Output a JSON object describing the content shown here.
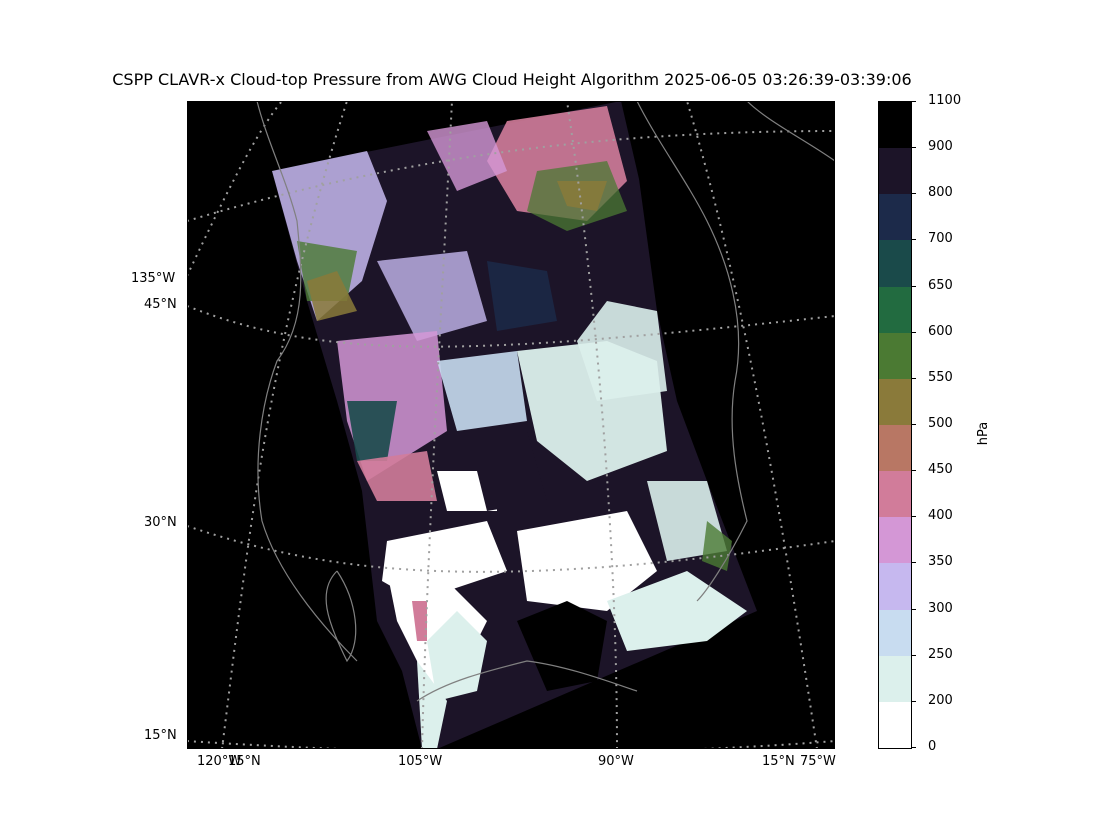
{
  "title": "CSPP CLAVR-x Cloud-top Pressure from AWG Cloud Height Algorithm 2025-06-05 03:26:39-03:39:06",
  "map": {
    "background": "#000000",
    "coastline_color": "#808080",
    "graticule_color": "#a0a0a0",
    "left_labels": [
      "135°W",
      "45°N",
      "30°N",
      "15°N"
    ],
    "bottom_labels": [
      "120°W",
      "15°N",
      "105°W",
      "90°W",
      "15°N",
      "75°W"
    ]
  },
  "colorbar": {
    "unit": "hPa",
    "ticks": [
      "1100",
      "900",
      "800",
      "700",
      "650",
      "600",
      "550",
      "500",
      "450",
      "400",
      "350",
      "300",
      "250",
      "200",
      "0"
    ],
    "colors": [
      "#000000",
      "#1c1428",
      "#1c2a4a",
      "#1a4a4a",
      "#226b40",
      "#4b7a33",
      "#8a7a3a",
      "#b87764",
      "#d17c9a",
      "#d497d6",
      "#c6b8ef",
      "#c8dcf0",
      "#dcf0ec",
      "#ffffff"
    ]
  }
}
